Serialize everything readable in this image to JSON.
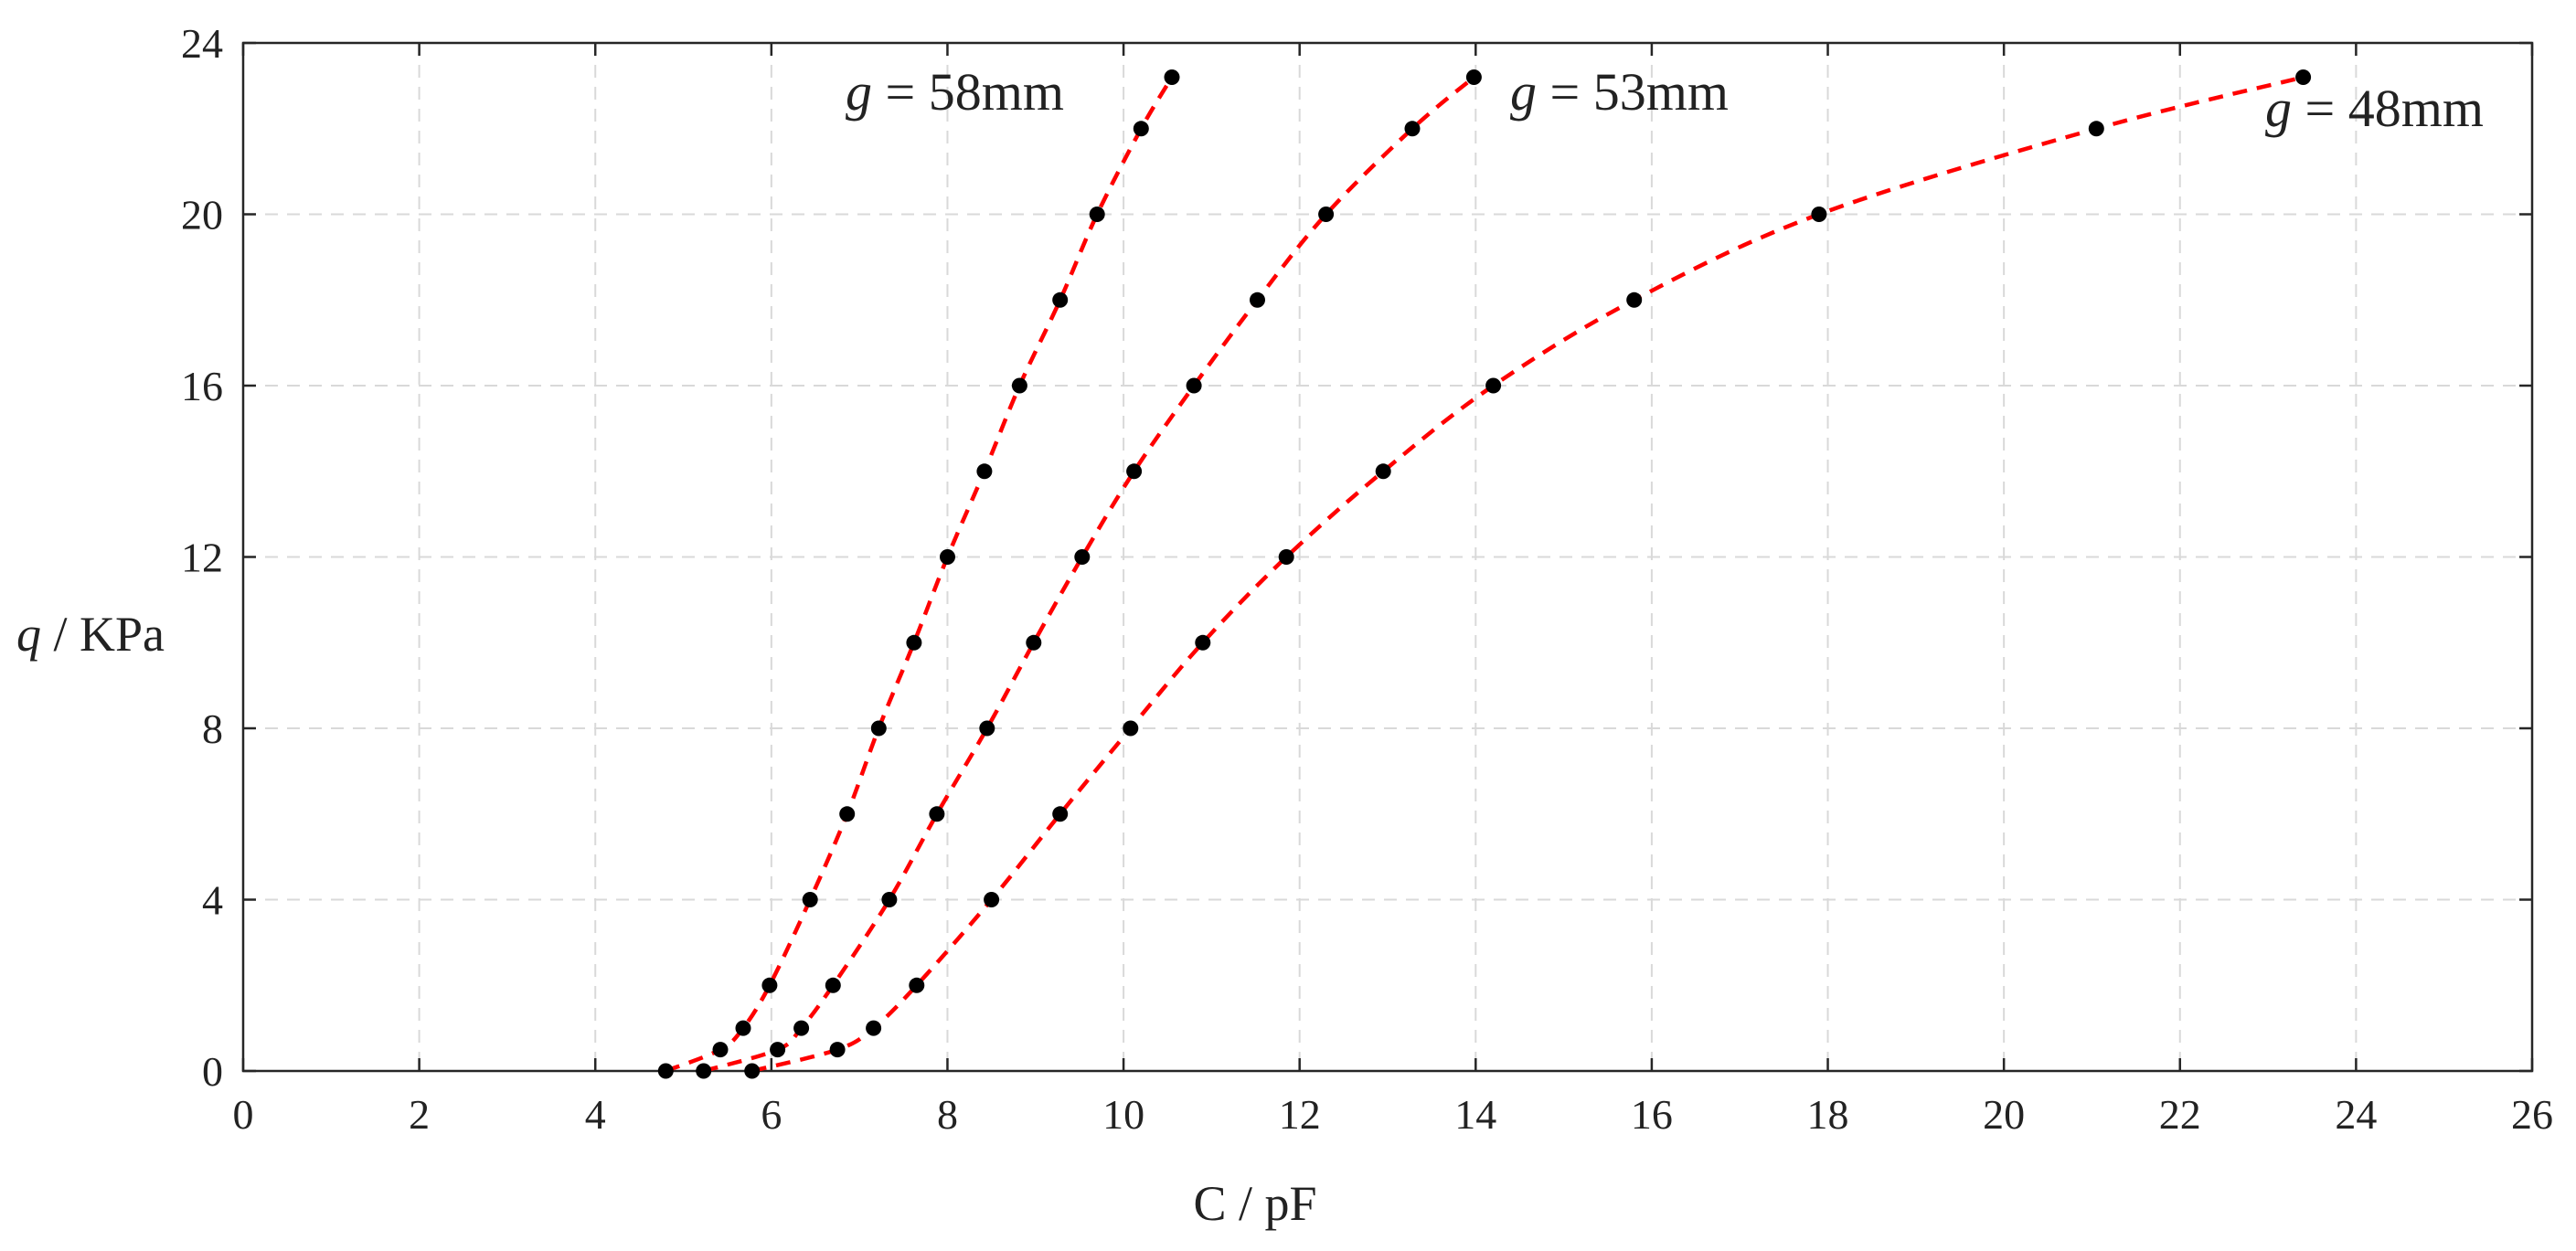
{
  "chart_data": {
    "type": "scatter",
    "title": "",
    "xlabel": {
      "var": "C",
      "sep": " / ",
      "unit": "pF"
    },
    "ylabel": {
      "var": "q",
      "sep": " / ",
      "unit": "KPa"
    },
    "xlim": [
      0,
      26
    ],
    "ylim": [
      0,
      24
    ],
    "xticks": [
      0,
      2,
      4,
      6,
      8,
      10,
      12,
      14,
      16,
      18,
      20,
      22,
      24,
      26
    ],
    "yticks": [
      0,
      4,
      8,
      12,
      16,
      20,
      24
    ],
    "grid": true,
    "fit_line": "red dashed",
    "series": [
      {
        "name": "g = 58mm",
        "label": {
          "var": "g",
          "eq": " = ",
          "val": "58mm"
        },
        "x": [
          4.8,
          5.42,
          5.68,
          5.98,
          6.44,
          6.86,
          7.22,
          7.62,
          8.0,
          8.42,
          8.82,
          9.28,
          9.7,
          10.2,
          10.55
        ],
        "y": [
          0,
          0.5,
          1,
          2,
          4,
          6,
          8,
          10,
          12,
          14,
          16,
          18,
          20,
          22,
          23.2
        ]
      },
      {
        "name": "g = 53mm",
        "label": {
          "var": "g",
          "eq": " = ",
          "val": "53mm"
        },
        "x": [
          5.23,
          6.07,
          6.34,
          6.7,
          7.34,
          7.88,
          8.45,
          8.98,
          9.53,
          10.12,
          10.8,
          11.52,
          12.3,
          13.28,
          13.98
        ],
        "y": [
          0,
          0.5,
          1,
          2,
          4,
          6,
          8,
          10,
          12,
          14,
          16,
          18,
          20,
          22,
          23.2
        ]
      },
      {
        "name": "g = 48mm",
        "label": {
          "var": "g",
          "eq": " = ",
          "val": "48mm"
        },
        "x": [
          5.78,
          6.75,
          7.16,
          7.65,
          8.5,
          9.28,
          10.08,
          10.9,
          11.85,
          12.95,
          14.2,
          15.8,
          17.9,
          21.05,
          23.4
        ],
        "y": [
          0,
          0.5,
          1,
          2,
          4,
          6,
          8,
          10,
          12,
          14,
          16,
          18,
          20,
          22,
          23.2
        ]
      }
    ]
  }
}
